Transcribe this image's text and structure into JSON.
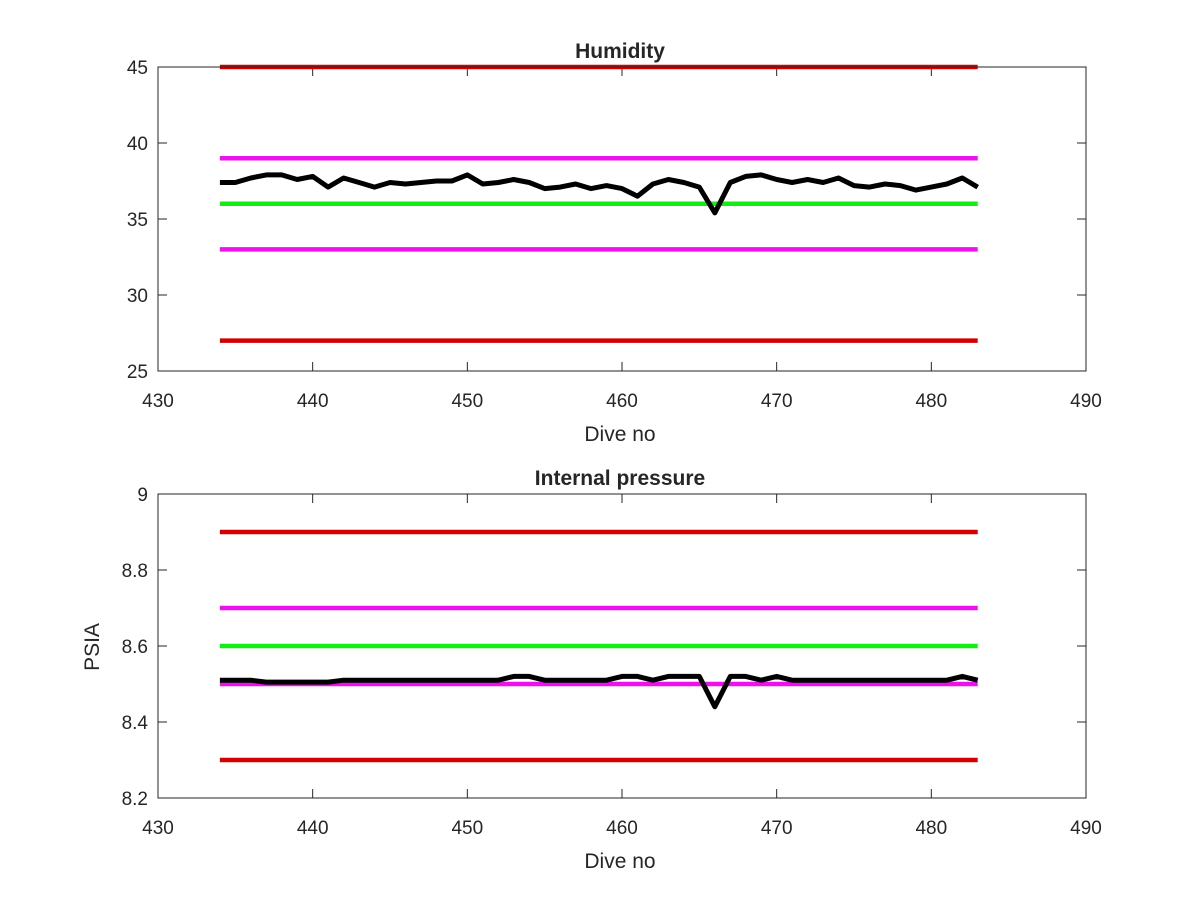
{
  "chart_data": [
    {
      "type": "line",
      "title": "Humidity",
      "xlabel": "Dive no",
      "ylabel": "",
      "xlim": [
        430,
        490
      ],
      "ylim": [
        25,
        45
      ],
      "xticks": [
        430,
        440,
        450,
        460,
        470,
        480,
        490
      ],
      "yticks": [
        25,
        30,
        35,
        40,
        45
      ],
      "xtick_labels": [
        "430",
        "440",
        "450",
        "460",
        "470",
        "480",
        "490"
      ],
      "ytick_labels": [
        "25",
        "30",
        "35",
        "40",
        "45"
      ],
      "grid": false,
      "series": [
        {
          "role": "upper-limit",
          "color": "#d40000",
          "x": [
            434,
            483
          ],
          "y": [
            45,
            45
          ]
        },
        {
          "role": "upper-warning",
          "color": "#ee11ee",
          "x": [
            434,
            483
          ],
          "y": [
            39,
            39
          ]
        },
        {
          "role": "nominal",
          "color": "#11ee11",
          "x": [
            434,
            483
          ],
          "y": [
            36,
            36
          ]
        },
        {
          "role": "lower-warning",
          "color": "#ee11ee",
          "x": [
            434,
            483
          ],
          "y": [
            33,
            33
          ]
        },
        {
          "role": "lower-limit",
          "color": "#d40000",
          "x": [
            434,
            483
          ],
          "y": [
            27,
            27
          ]
        },
        {
          "role": "measured",
          "color": "#000000",
          "x": [
            434,
            435,
            436,
            437,
            438,
            439,
            440,
            441,
            442,
            443,
            444,
            445,
            446,
            447,
            448,
            449,
            450,
            451,
            452,
            453,
            454,
            455,
            456,
            457,
            458,
            459,
            460,
            461,
            462,
            463,
            464,
            465,
            466,
            467,
            468,
            469,
            470,
            471,
            472,
            473,
            474,
            475,
            476,
            477,
            478,
            479,
            480,
            481,
            482,
            483
          ],
          "y": [
            37.4,
            37.4,
            37.7,
            37.9,
            37.9,
            37.6,
            37.8,
            37.1,
            37.7,
            37.4,
            37.1,
            37.4,
            37.3,
            37.4,
            37.5,
            37.5,
            37.9,
            37.3,
            37.4,
            37.6,
            37.4,
            37.0,
            37.1,
            37.3,
            37.0,
            37.2,
            37.0,
            36.5,
            37.3,
            37.6,
            37.4,
            37.1,
            35.4,
            37.4,
            37.8,
            37.9,
            37.6,
            37.4,
            37.6,
            37.4,
            37.7,
            37.2,
            37.1,
            37.3,
            37.2,
            36.9,
            37.1,
            37.3,
            37.7,
            37.1
          ]
        }
      ]
    },
    {
      "type": "line",
      "title": "Internal pressure",
      "xlabel": "Dive no",
      "ylabel": "PSIA",
      "xlim": [
        430,
        490
      ],
      "ylim": [
        8.2,
        9.0
      ],
      "xticks": [
        430,
        440,
        450,
        460,
        470,
        480,
        490
      ],
      "yticks": [
        8.2,
        8.4,
        8.6,
        8.8,
        9.0
      ],
      "xtick_labels": [
        "430",
        "440",
        "450",
        "460",
        "470",
        "480",
        "490"
      ],
      "ytick_labels": [
        "8.2",
        "8.4",
        "8.6",
        "8.8",
        "9"
      ],
      "grid": false,
      "series": [
        {
          "role": "upper-limit",
          "color": "#d40000",
          "x": [
            434,
            483
          ],
          "y": [
            8.9,
            8.9
          ]
        },
        {
          "role": "upper-warning",
          "color": "#ee11ee",
          "x": [
            434,
            483
          ],
          "y": [
            8.7,
            8.7
          ]
        },
        {
          "role": "nominal",
          "color": "#11ee11",
          "x": [
            434,
            483
          ],
          "y": [
            8.6,
            8.6
          ]
        },
        {
          "role": "lower-warning",
          "color": "#ee11ee",
          "x": [
            434,
            483
          ],
          "y": [
            8.5,
            8.5
          ]
        },
        {
          "role": "lower-limit",
          "color": "#d40000",
          "x": [
            434,
            483
          ],
          "y": [
            8.3,
            8.3
          ]
        },
        {
          "role": "measured",
          "color": "#000000",
          "x": [
            434,
            435,
            436,
            437,
            438,
            439,
            440,
            441,
            442,
            443,
            444,
            445,
            446,
            447,
            448,
            449,
            450,
            451,
            452,
            453,
            454,
            455,
            456,
            457,
            458,
            459,
            460,
            461,
            462,
            463,
            464,
            465,
            466,
            467,
            468,
            469,
            470,
            471,
            472,
            473,
            474,
            475,
            476,
            477,
            478,
            479,
            480,
            481,
            482,
            483
          ],
          "y": [
            8.51,
            8.51,
            8.51,
            8.505,
            8.505,
            8.505,
            8.505,
            8.505,
            8.51,
            8.51,
            8.51,
            8.51,
            8.51,
            8.51,
            8.51,
            8.51,
            8.51,
            8.51,
            8.51,
            8.52,
            8.52,
            8.51,
            8.51,
            8.51,
            8.51,
            8.51,
            8.52,
            8.52,
            8.51,
            8.52,
            8.52,
            8.52,
            8.44,
            8.52,
            8.52,
            8.51,
            8.52,
            8.51,
            8.51,
            8.51,
            8.51,
            8.51,
            8.51,
            8.51,
            8.51,
            8.51,
            8.51,
            8.51,
            8.52,
            8.51
          ]
        }
      ]
    }
  ]
}
